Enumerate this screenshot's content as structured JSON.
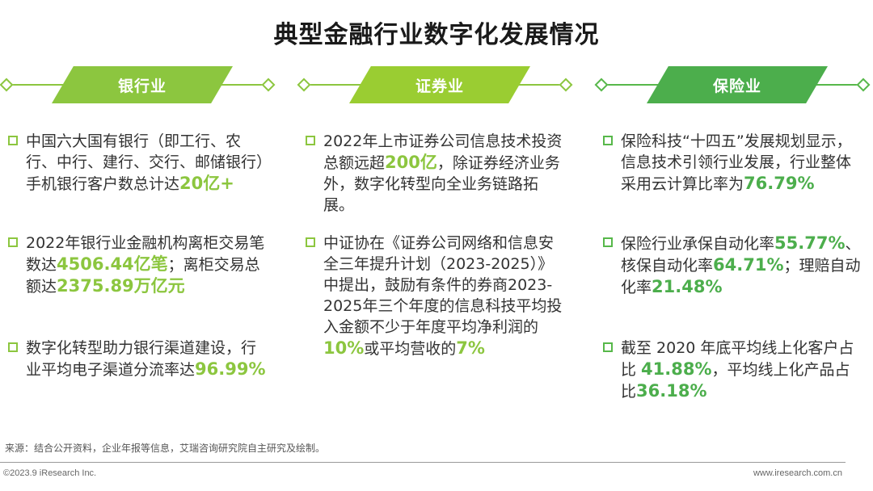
{
  "title": "典型金融行业数字化发展情况",
  "colors": {
    "green_light": "#8cc63f",
    "green_dark": "#4cae4c"
  },
  "columns": [
    {
      "heading": "银行业",
      "items": [
        {
          "parts": [
            {
              "text": "中国六大国有银行（即工行、农行、中行、建行、交行、邮储银行）手机银行客户数总计达",
              "hl": false
            },
            {
              "text": "20亿+",
              "hl": true
            }
          ]
        },
        {
          "parts": [
            {
              "text": "2022年银行业金融机构离柜交易笔数达",
              "hl": false
            },
            {
              "text": "4506.44亿笔",
              "hl": true
            },
            {
              "text": "；离柜交易总额达",
              "hl": false
            },
            {
              "text": "2375.89万亿元",
              "hl": true
            }
          ]
        },
        {
          "parts": [
            {
              "text": "数字化转型助力银行渠道建设，行业平均电子渠道分流率达",
              "hl": false
            },
            {
              "text": "96.99%",
              "hl": true
            }
          ]
        }
      ]
    },
    {
      "heading": "证券业",
      "items": [
        {
          "parts": [
            {
              "text": "2022年上市证券公司信息技术投资总额远超",
              "hl": false
            },
            {
              "text": "200亿",
              "hl": true
            },
            {
              "text": "，除证券经济业务外，数字化转型向全业务链路拓展。",
              "hl": false
            }
          ]
        },
        {
          "parts": [
            {
              "text": "中证协在《证券公司网络和信息安全三年提升计划（2023-2025）》中提出，鼓励有条件的券商2023-2025年三个年度的信息科技平均投入金额不少于年度平均净利润的",
              "hl": false
            },
            {
              "text": "10%",
              "hl": true
            },
            {
              "text": "或平均营收的",
              "hl": false
            },
            {
              "text": "7%",
              "hl": true
            }
          ]
        }
      ]
    },
    {
      "heading": "保险业",
      "items": [
        {
          "parts": [
            {
              "text": "保险科技“十四五”发展规划显示，信息技术引领行业发展，行业整体采用云计算比率为",
              "hl": false
            },
            {
              "text": "76.79%",
              "hl": true
            }
          ]
        },
        {
          "parts": [
            {
              "text": "保险行业承保自动化率",
              "hl": false
            },
            {
              "text": "55.77%",
              "hl": true
            },
            {
              "text": "、核保自动化率",
              "hl": false
            },
            {
              "text": "64.71%",
              "hl": true
            },
            {
              "text": "；理赔自动化率",
              "hl": false
            },
            {
              "text": "21.48%",
              "hl": true
            }
          ]
        },
        {
          "parts": [
            {
              "text": "截至 2020 年底平均线上化客户占比 ",
              "hl": false
            },
            {
              "text": "41.88%",
              "hl": true
            },
            {
              "text": "，平均线上化产品占比",
              "hl": false
            },
            {
              "text": "36.18%",
              "hl": true
            }
          ]
        }
      ]
    }
  ],
  "source": "来源：结合公开资料，企业年报等信息，艾瑞咨询研究院自主研究及绘制。",
  "copyright": "©2023.9 iResearch Inc.",
  "website": "www.iresearch.com.cn"
}
